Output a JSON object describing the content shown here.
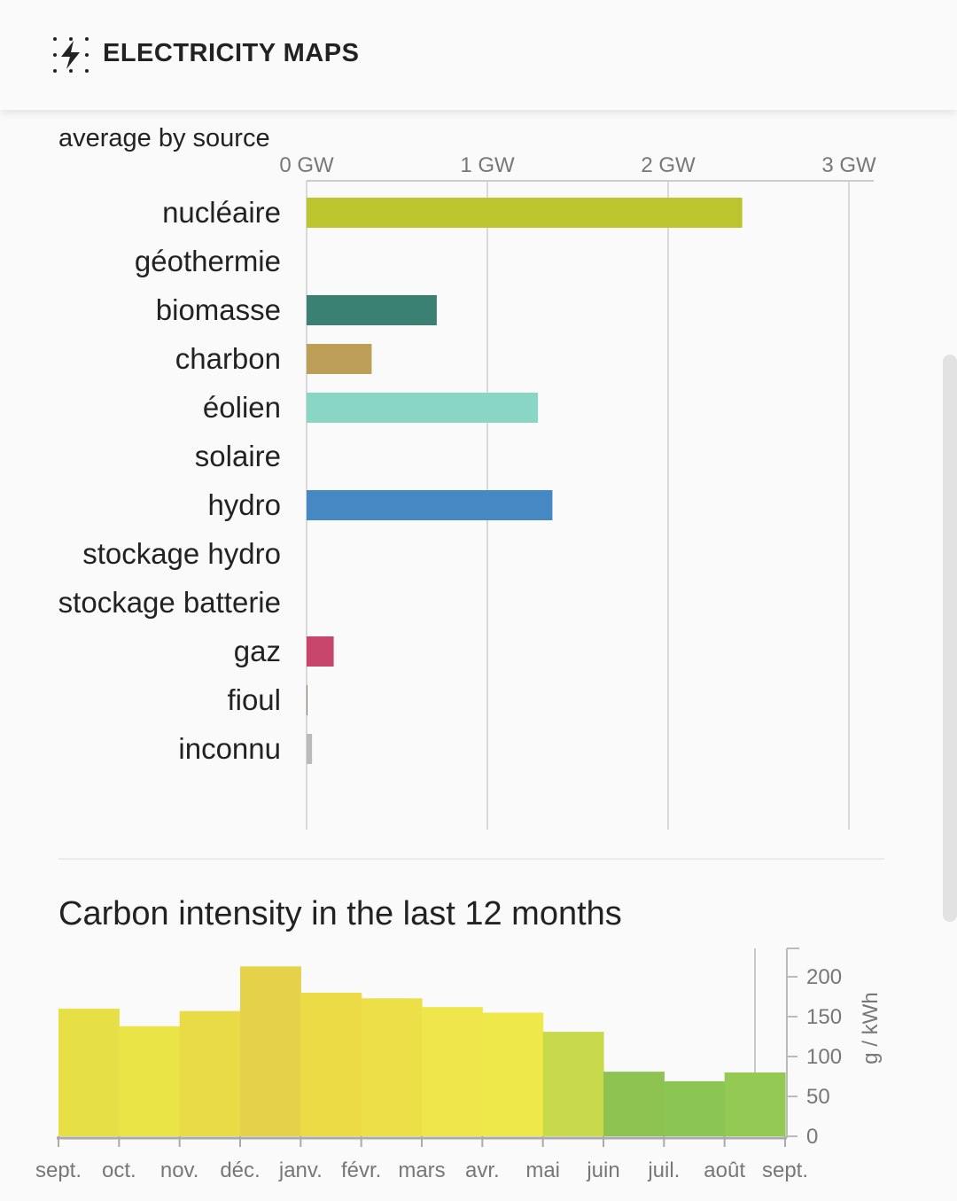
{
  "app": {
    "title": "ELECTRICITY MAPS",
    "logo_icon": "lightning-bolt-icon"
  },
  "section_label": "average by source",
  "carbon_title": "Carbon intensity in the last 12 months",
  "chart_data": [
    {
      "type": "bar",
      "orientation": "horizontal",
      "title": "average by source",
      "unit": "GW",
      "xlim": [
        0,
        3
      ],
      "xticks": [
        {
          "value": 0,
          "label": "0 GW"
        },
        {
          "value": 1,
          "label": "1 GW"
        },
        {
          "value": 2,
          "label": "2 GW"
        },
        {
          "value": 3,
          "label": "3 GW"
        }
      ],
      "categories": [
        "nucléaire",
        "géothermie",
        "biomasse",
        "charbon",
        "éolien",
        "solaire",
        "hydro",
        "stockage hydro",
        "stockage batterie",
        "gaz",
        "fioul",
        "inconnu"
      ],
      "values": [
        2.41,
        0,
        0.72,
        0.36,
        1.28,
        0,
        1.36,
        0,
        0,
        0.15,
        0.005,
        0.03
      ],
      "colors": [
        "#bcc52d",
        "#a0a0a0",
        "#3a8073",
        "#bd9e56",
        "#88d6c3",
        "#f2d94a",
        "#4688c3",
        "#1c5e9e",
        "#6f4bb8",
        "#c8466b",
        "#867d66",
        "#bababa"
      ]
    },
    {
      "type": "bar",
      "title": "Carbon intensity in the last 12 months",
      "ylabel": "g / kWh",
      "ylim": [
        0,
        240
      ],
      "yticks": [
        0,
        50,
        100,
        150,
        200
      ],
      "categories": [
        "sept.",
        "oct.",
        "nov.",
        "déc.",
        "janv.",
        "févr.",
        "mars",
        "avr.",
        "mai",
        "juin",
        "juil.",
        "août"
      ],
      "xtick_labels": [
        "sept.",
        "oct.",
        "nov.",
        "déc.",
        "janv.",
        "févr.",
        "mars",
        "avr.",
        "mai",
        "juin",
        "juil.",
        "août",
        "sept."
      ],
      "values": [
        160,
        138,
        157,
        213,
        180,
        173,
        162,
        155,
        131,
        81,
        69,
        80
      ],
      "colors": [
        "#e7df46",
        "#eae447",
        "#e9db46",
        "#e6d24a",
        "#eddb46",
        "#ecdf47",
        "#eee64a",
        "#eee84a",
        "#c8d94c",
        "#8fc351",
        "#8bc553",
        "#94c954"
      ]
    }
  ]
}
